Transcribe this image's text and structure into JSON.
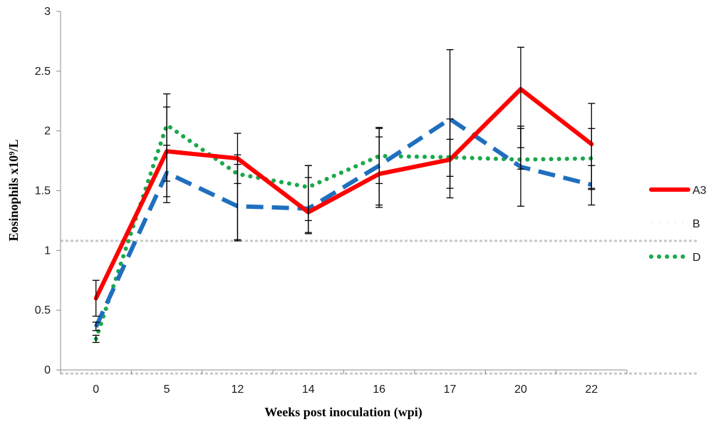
{
  "chart_data": {
    "type": "line",
    "title": "",
    "xlabel": "Weeks post inoculation (wpi)",
    "ylabel": "Eosinophils x10⁹/L",
    "categories": [
      "0",
      "5",
      "12",
      "14",
      "16",
      "17",
      "20",
      "22"
    ],
    "ylim": [
      0,
      3
    ],
    "yticks": [
      "0",
      "0.5",
      "1",
      "1.5",
      "2",
      "2.5",
      "3"
    ],
    "grid": false,
    "legend_position": "right",
    "reference_lines": [
      1.08,
      -0.03
    ],
    "series": [
      {
        "name": "A3",
        "color": "#ff0000",
        "style": "solid",
        "values": [
          0.6,
          1.83,
          1.77,
          1.32,
          1.64,
          1.76,
          2.35,
          1.89
        ],
        "err_low": [
          0.45,
          1.45,
          1.09,
          1.14,
          1.36,
          1.44,
          1.37,
          1.51
        ],
        "err_high": [
          0.75,
          2.31,
          1.98,
          1.71,
          2.03,
          2.68,
          2.7,
          2.23
        ]
      },
      {
        "name": "B",
        "color": "#1f6fbf",
        "style": "dashed",
        "values": [
          0.36,
          1.65,
          1.37,
          1.35,
          1.71,
          2.1,
          1.7,
          1.55
        ],
        "err_low": [
          0.33,
          1.4,
          1.08,
          1.15,
          1.38,
          1.62,
          1.68,
          1.38
        ],
        "err_high": [
          0.4,
          1.88,
          1.8,
          1.61,
          2.02,
          1.93,
          2.04,
          1.71
        ]
      },
      {
        "name": "D",
        "color": "#1aa84b",
        "style": "dotted",
        "values": [
          0.26,
          2.05,
          1.64,
          1.53,
          1.79,
          1.78,
          1.76,
          1.77
        ],
        "err_low": [
          0.23,
          1.58,
          1.56,
          1.25,
          1.56,
          1.52,
          1.86,
          1.52
        ],
        "err_high": [
          0.29,
          2.2,
          1.72,
          1.71,
          1.95,
          2.1,
          2.02,
          2.02
        ]
      }
    ]
  }
}
